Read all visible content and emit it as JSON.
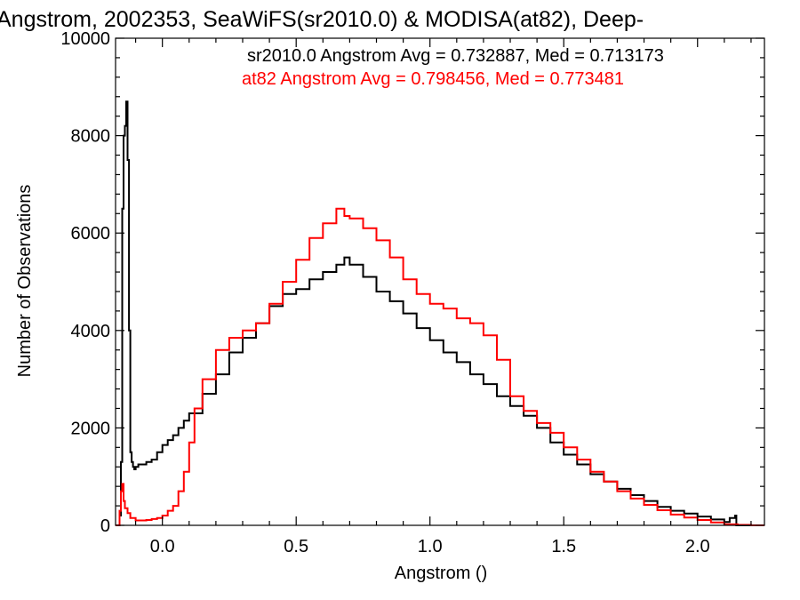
{
  "chart_data": {
    "type": "line",
    "style": "step",
    "title": "Angstrom, 2002353, SeaWiFS(sr2010.0) & MODISA(at82), Deep-",
    "xlabel": "Angstrom ()",
    "ylabel": "Number of Observations",
    "xlim": [
      -0.175,
      2.25
    ],
    "ylim": [
      0,
      10000
    ],
    "xticks": [
      0.0,
      0.5,
      1.0,
      1.5,
      2.0
    ],
    "xtick_labels": [
      "0.0",
      "0.5",
      "1.0",
      "1.5",
      "2.0"
    ],
    "yticks": [
      0,
      2000,
      4000,
      6000,
      8000,
      10000
    ],
    "ytick_labels": [
      "0",
      "2000",
      "4000",
      "6000",
      "8000",
      "10000"
    ],
    "grid": false,
    "annotations": [
      "sr2010.0 Angstrom Avg = 0.732887, Med = 0.713173",
      "at82 Angstrom Avg = 0.798456, Med = 0.773481"
    ],
    "series": [
      {
        "color": "#000000",
        "x": [
          -0.175,
          -0.16,
          -0.155,
          -0.15,
          -0.145,
          -0.14,
          -0.135,
          -0.13,
          -0.125,
          -0.12,
          -0.115,
          -0.11,
          -0.105,
          -0.1,
          -0.09,
          -0.08,
          -0.06,
          -0.04,
          -0.02,
          0.0,
          0.02,
          0.04,
          0.06,
          0.08,
          0.1,
          0.15,
          0.2,
          0.25,
          0.3,
          0.35,
          0.4,
          0.45,
          0.5,
          0.55,
          0.6,
          0.65,
          0.68,
          0.7,
          0.75,
          0.8,
          0.85,
          0.9,
          0.95,
          1.0,
          1.05,
          1.1,
          1.15,
          1.2,
          1.25,
          1.3,
          1.35,
          1.4,
          1.45,
          1.5,
          1.55,
          1.6,
          1.65,
          1.7,
          1.75,
          1.8,
          1.85,
          1.9,
          1.95,
          2.0,
          2.05,
          2.1,
          2.12,
          2.14,
          2.145,
          2.2,
          2.25
        ],
        "y": [
          0,
          200,
          1300,
          6500,
          8000,
          8200,
          8700,
          7500,
          4000,
          1500,
          1300,
          1200,
          1150,
          1200,
          1250,
          1250,
          1300,
          1350,
          1500,
          1650,
          1750,
          1850,
          2000,
          2150,
          2300,
          2700,
          3100,
          3550,
          3850,
          4150,
          4500,
          4750,
          4850,
          5050,
          5200,
          5350,
          5500,
          5350,
          5100,
          4800,
          4600,
          4350,
          4050,
          3800,
          3550,
          3350,
          3100,
          2900,
          2650,
          2450,
          2250,
          2000,
          1700,
          1450,
          1250,
          1050,
          900,
          750,
          620,
          500,
          380,
          300,
          240,
          180,
          120,
          70,
          150,
          200,
          0,
          0,
          0
        ]
      },
      {
        "color": "#ff0000",
        "x": [
          -0.175,
          -0.16,
          -0.155,
          -0.15,
          -0.145,
          -0.14,
          -0.13,
          -0.12,
          -0.1,
          -0.08,
          -0.06,
          -0.04,
          -0.02,
          0.0,
          0.02,
          0.04,
          0.06,
          0.08,
          0.1,
          0.12,
          0.15,
          0.2,
          0.25,
          0.3,
          0.35,
          0.4,
          0.45,
          0.5,
          0.55,
          0.6,
          0.65,
          0.68,
          0.7,
          0.75,
          0.8,
          0.85,
          0.9,
          0.95,
          1.0,
          1.05,
          1.1,
          1.15,
          1.2,
          1.25,
          1.3,
          1.35,
          1.4,
          1.45,
          1.5,
          1.55,
          1.6,
          1.65,
          1.7,
          1.75,
          1.8,
          1.85,
          1.9,
          1.95,
          2.0,
          2.05,
          2.1,
          2.15,
          2.2,
          2.25
        ],
        "y": [
          0,
          300,
          700,
          850,
          500,
          350,
          250,
          150,
          100,
          100,
          110,
          130,
          150,
          200,
          300,
          400,
          700,
          1100,
          1700,
          2400,
          3000,
          3600,
          3850,
          4000,
          4150,
          4550,
          5000,
          5450,
          5900,
          6200,
          6500,
          6350,
          6300,
          6100,
          5850,
          5500,
          5050,
          4750,
          4550,
          4450,
          4250,
          4150,
          3900,
          3400,
          2650,
          2350,
          2100,
          1900,
          1600,
          1350,
          1100,
          900,
          700,
          550,
          420,
          310,
          220,
          160,
          110,
          60,
          20,
          10,
          0,
          0
        ]
      }
    ]
  }
}
